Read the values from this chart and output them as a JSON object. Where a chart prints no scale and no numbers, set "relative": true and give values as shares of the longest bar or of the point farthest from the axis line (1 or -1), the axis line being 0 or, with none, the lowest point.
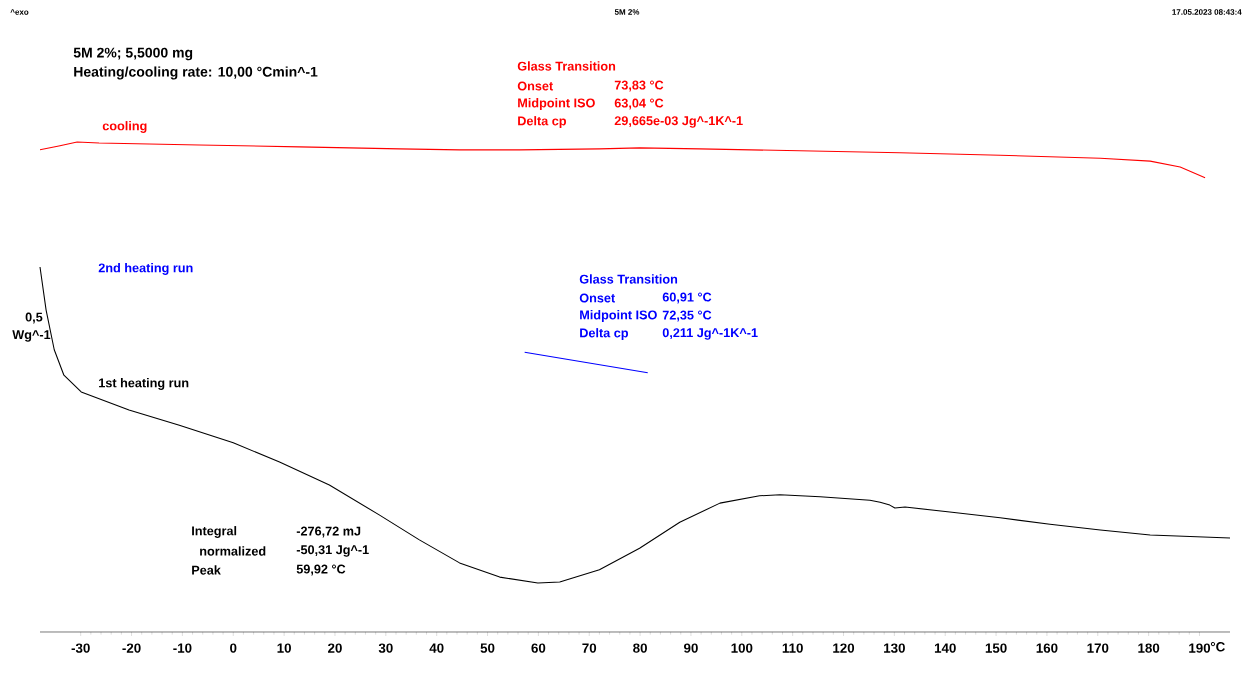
{
  "chart_data": {
    "type": "line",
    "xlabel": "°C",
    "ylabel": "Wg^-1",
    "relative": true,
    "tick_labels": "x",
    "xlim": [
      -38,
      196
    ],
    "xticks": [
      -30,
      -20,
      -10,
      0,
      10,
      20,
      30,
      40,
      50,
      60,
      70,
      80,
      90,
      100,
      110,
      120,
      130,
      140,
      150,
      160,
      170,
      180,
      190
    ],
    "annotations": [
      "^exo",
      "5M 2%",
      "17.05.2023 08:43:4",
      "5M 2%; 5,5000 mg",
      "Heating/cooling rate:   10,00 °Cmin^-1",
      "Glass Transition",
      "Onset",
      "73,83 °C",
      "Midpoint ISO",
      "63,04 °C",
      "Delta cp",
      "29,665e-03 Jg^-1K^-1",
      "Glass Transition",
      "Onset",
      "60,91 °C",
      "Midpoint ISO",
      "72,35 °C",
      "Delta cp",
      "0,211 Jg^-1K^-1",
      "Integral",
      "-276,72 mJ",
      "normalized",
      "-50,31 Jg^-1",
      "Peak",
      "59,92 °C",
      "0,5"
    ],
    "series": [
      {
        "name": "cooling",
        "color": "#ff0000",
        "x": [
          -38,
          -34.3,
          -30.7,
          -26.4,
          -6.7,
          13,
          32.7,
          44.5,
          56.3,
          72,
          79.9,
          91.7,
          111.4,
          131.1,
          150.8,
          170.5,
          180.3,
          186.2,
          191.1
        ],
        "values": [
          0.984,
          0.992,
          1,
          0.998,
          0.994,
          0.99,
          0.986,
          0.984,
          0.984,
          0.986,
          0.988,
          0.986,
          0.982,
          0.978,
          0.973,
          0.967,
          0.961,
          0.949,
          0.927
        ]
      },
      {
        "name": "2nd heating run",
        "color": "#0000ff",
        "x": [
          57.3,
          81.5
        ],
        "values": [
          0.571,
          0.529
        ]
      },
      {
        "name": "1st heating run",
        "color": "#000000",
        "x": [
          -38,
          -36.8,
          -35.2,
          -33.3,
          -29.9,
          -20.5,
          -10.6,
          0,
          9.1,
          18.9,
          28.7,
          36.6,
          44.5,
          52.4,
          59.9,
          64.2,
          72,
          79.9,
          87.8,
          95.7,
          103.5,
          107.5,
          115.4,
          125.2,
          127.2,
          129.1,
          130.1,
          132.1,
          140.9,
          150.8,
          160.6,
          170.5,
          180.3,
          196
        ],
        "values": [
          0.745,
          0.657,
          0.576,
          0.524,
          0.49,
          0.453,
          0.422,
          0.386,
          0.347,
          0.3,
          0.239,
          0.188,
          0.141,
          0.112,
          0.1,
          0.102,
          0.127,
          0.171,
          0.224,
          0.263,
          0.278,
          0.28,
          0.276,
          0.269,
          0.265,
          0.259,
          0.253,
          0.255,
          0.245,
          0.233,
          0.22,
          0.208,
          0.198,
          0.192
        ]
      }
    ]
  }
}
